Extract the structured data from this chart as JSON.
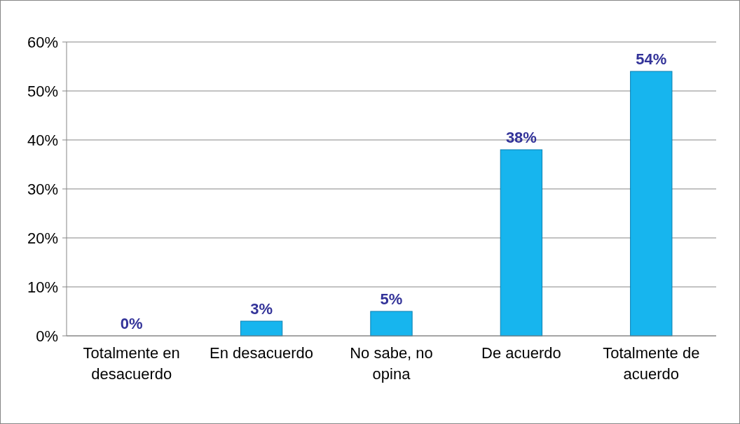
{
  "chart_data": {
    "type": "bar",
    "categories": [
      "Totalmente en desacuerdo",
      "En desacuerdo",
      "No sabe, no opina",
      "De acuerdo",
      "Totalmente de acuerdo"
    ],
    "values": [
      0,
      3,
      5,
      38,
      54
    ],
    "color": "#17b5ee",
    "ylim": [
      0,
      60
    ],
    "yticks": [
      {
        "value": 0,
        "label": "0%"
      },
      {
        "value": 10,
        "label": "10%"
      },
      {
        "value": 20,
        "label": "20%"
      },
      {
        "value": 30,
        "label": "30%"
      },
      {
        "value": 40,
        "label": "40%"
      },
      {
        "value": 50,
        "label": "50%"
      },
      {
        "value": 60,
        "label": "60%"
      }
    ],
    "value_labels": [
      "0%",
      "3%",
      "5%",
      "38%",
      "54%"
    ],
    "grid": "y"
  }
}
